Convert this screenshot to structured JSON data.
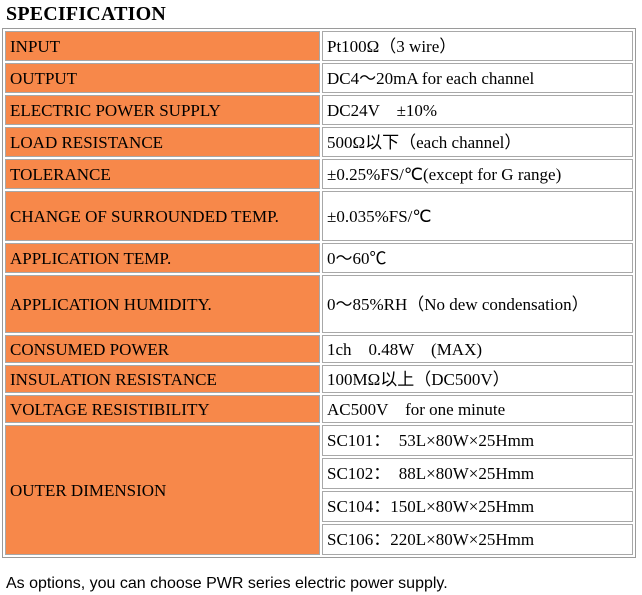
{
  "title": "SPECIFICATION",
  "rows": [
    {
      "label": "INPUT",
      "value": "Pt100Ω（3 wire）"
    },
    {
      "label": "OUTPUT",
      "value": "DC4～20mA for each channel"
    },
    {
      "label": "ELECTRIC POWER SUPPLY",
      "value": "DC24V　±10%"
    },
    {
      "label": "LOAD RESISTANCE",
      "value": "500Ω以下（each channel）"
    },
    {
      "label": "TOLERANCE",
      "value": "±0.25%FS/℃(except for G range)"
    },
    {
      "label": "CHANGE OF SURROUNDED TEMP.",
      "value": "±0.035%FS/℃"
    },
    {
      "label": "APPLICATION TEMP.",
      "value": "0～60℃"
    },
    {
      "label": "APPLICATION HUMIDITY.",
      "value": "0～85%RH（No dew condensation）"
    },
    {
      "label": "CONSUMED POWER",
      "value": "1ch　0.48W　(MAX)"
    },
    {
      "label": "INSULATION RESISTANCE",
      "value": "100MΩ以上（DC500V）"
    },
    {
      "label": "VOLTAGE RESISTIBILITY",
      "value": "AC500V　for one minute"
    }
  ],
  "outer_dimension": {
    "label": "OUTER DIMENSION",
    "values": [
      "SC101：　53L×80W×25Hmm",
      "SC102：　88L×80W×25Hmm",
      "SC104：150L×80W×25Hmm",
      "SC106：220L×80W×25Hmm"
    ]
  },
  "note": "As options, you can choose PWR series electric power supply.",
  "colors": {
    "label_background": "#f7884a",
    "border": "#a8a8a8"
  }
}
